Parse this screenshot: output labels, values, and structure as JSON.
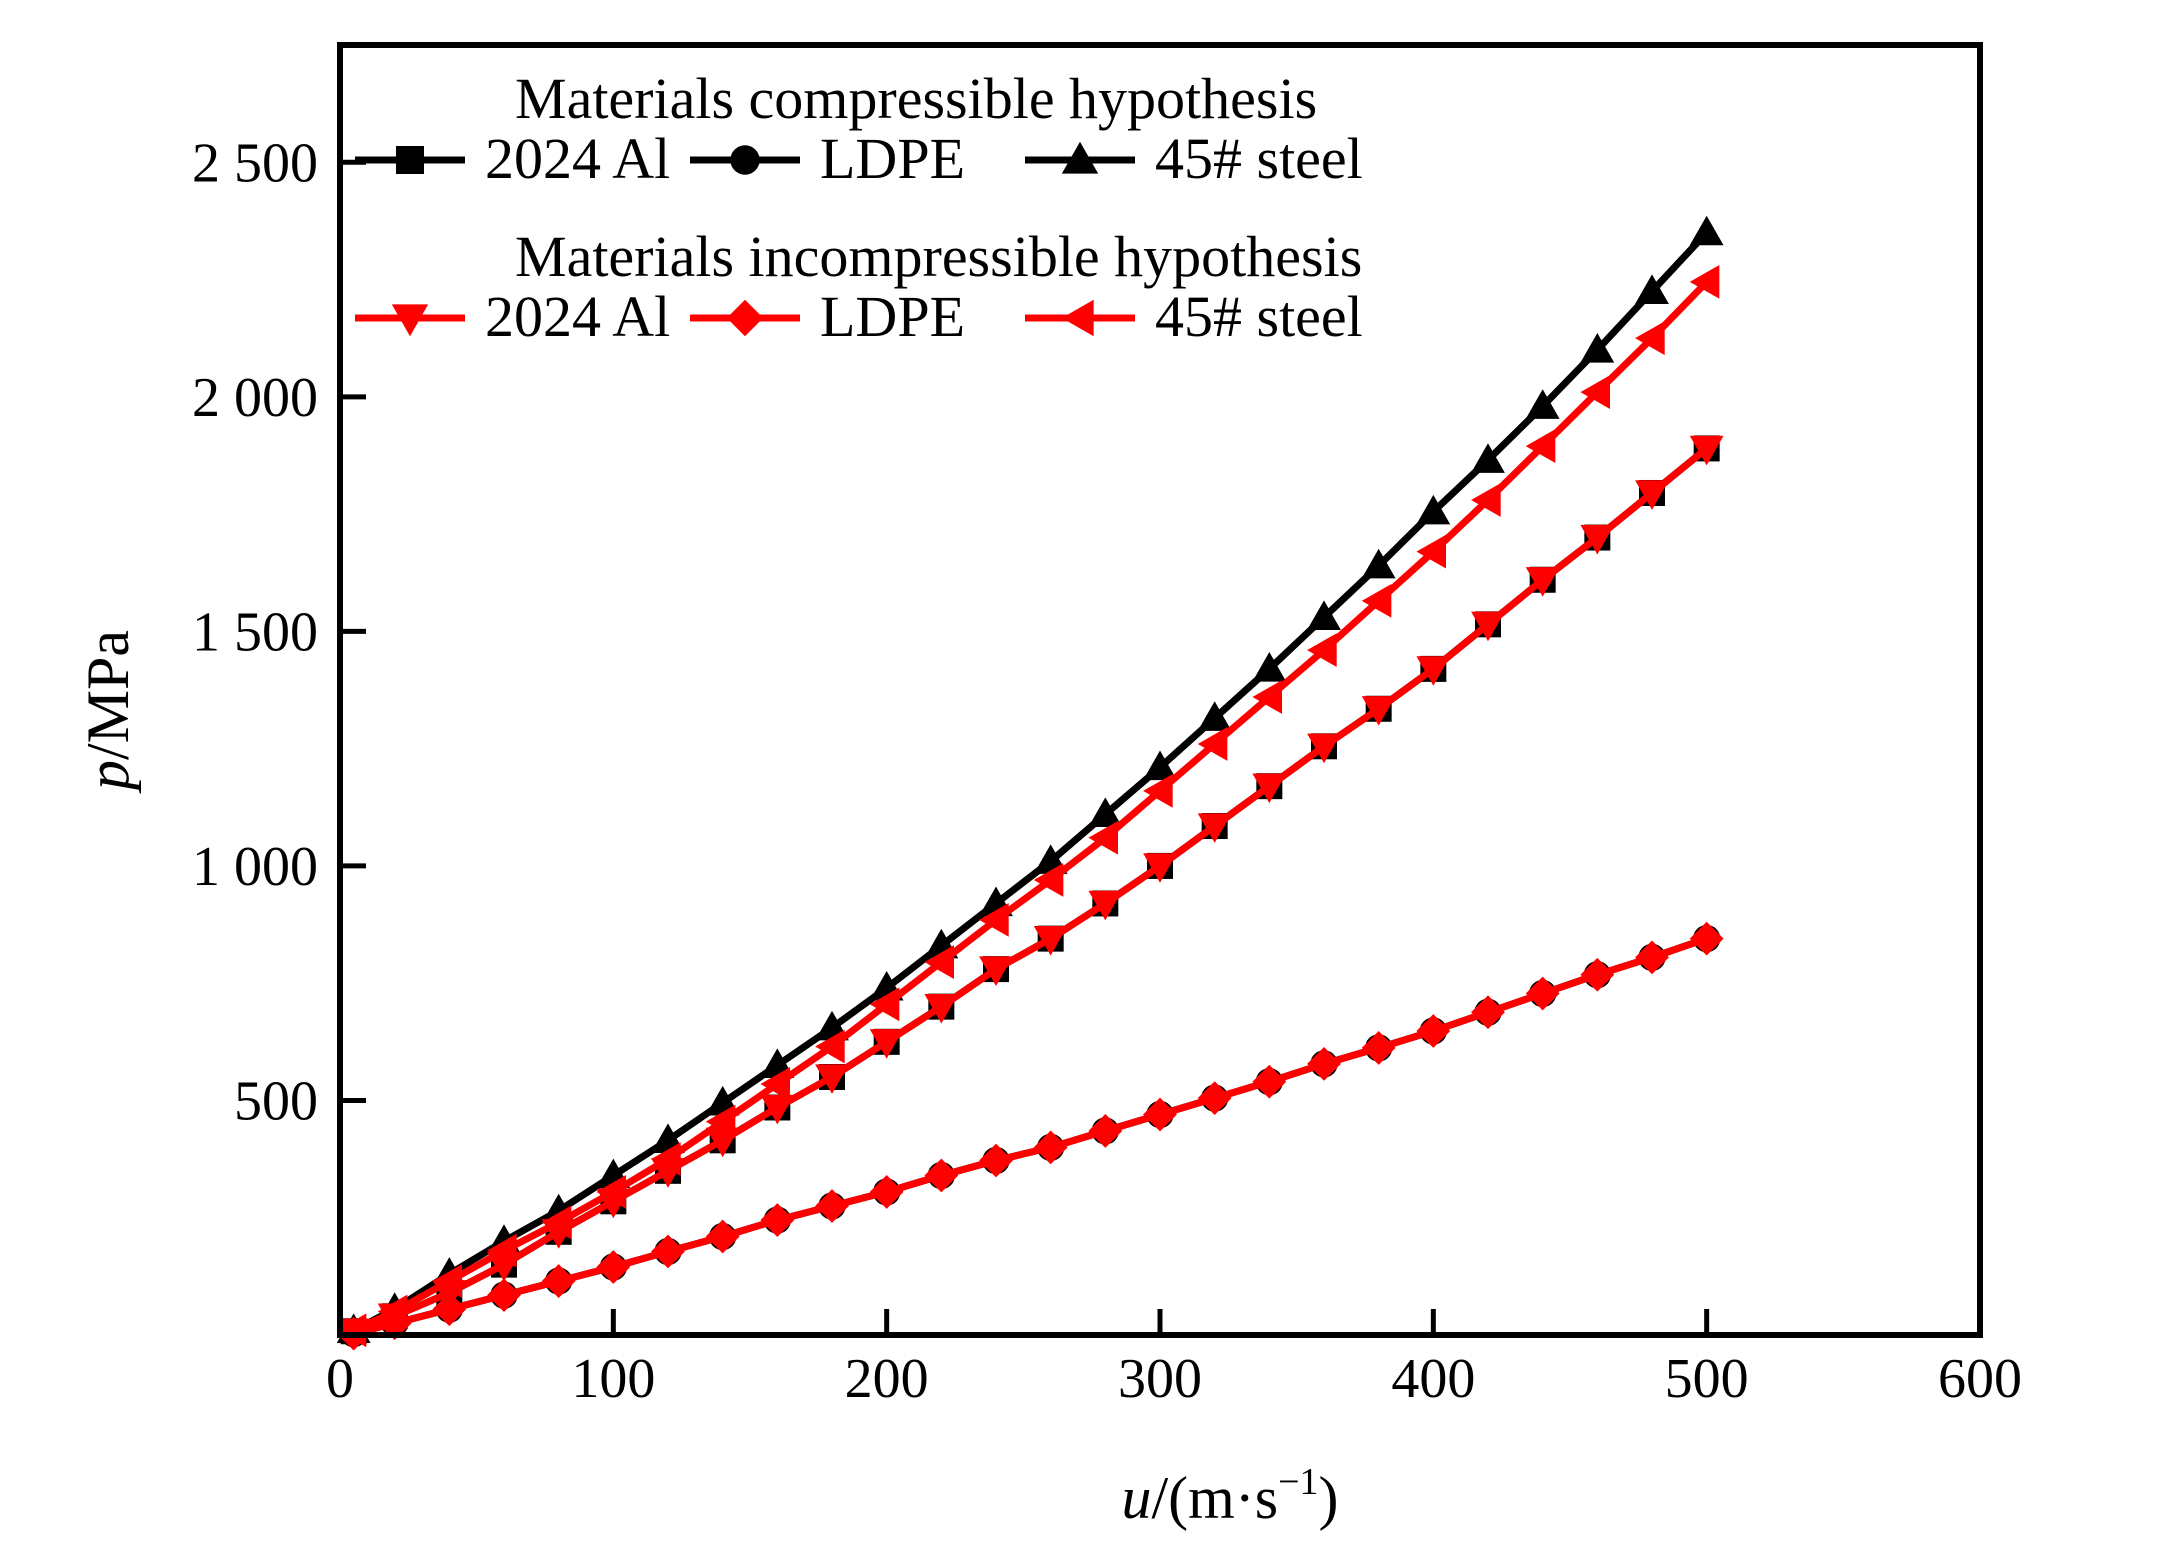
{
  "chart_data": {
    "type": "line",
    "xlabel": {
      "var": "u",
      "unit": "/(m·s",
      "sup": "−1",
      "close": ")"
    },
    "ylabel": {
      "var": "p",
      "unit": "/MPa"
    },
    "xlim": [
      0,
      600
    ],
    "ylim": [
      0,
      2750
    ],
    "xticks": [
      0,
      100,
      200,
      300,
      400,
      500,
      600
    ],
    "xtick_labels": [
      "0",
      "100",
      "200",
      "300",
      "400",
      "500",
      "600"
    ],
    "yticks": [
      500,
      1000,
      1500,
      2000,
      2500
    ],
    "ytick_labels": [
      "500",
      "1 000",
      "1 500",
      "2 000",
      "2 500"
    ],
    "grid": false,
    "legend_placement": "top-left",
    "legend_groups": [
      {
        "title": "Materials compressible hypothesis",
        "series": [
          0,
          1,
          2
        ]
      },
      {
        "title": "Materials incompressible hypothesis",
        "series": [
          3,
          4,
          5
        ]
      }
    ],
    "x": [
      5,
      20,
      40,
      60,
      80,
      100,
      120,
      140,
      160,
      180,
      200,
      220,
      240,
      260,
      280,
      300,
      320,
      340,
      360,
      380,
      400,
      420,
      440,
      460,
      480,
      500
    ],
    "series": [
      {
        "name": "2024 Al",
        "color": "#000000",
        "marker": "square",
        "values": [
          8,
          40,
          90,
          150,
          220,
          285,
          350,
          415,
          485,
          550,
          625,
          700,
          780,
          845,
          920,
          1000,
          1085,
          1170,
          1255,
          1335,
          1420,
          1515,
          1610,
          1700,
          1795,
          1890
        ]
      },
      {
        "name": "LDPE",
        "color": "#000000",
        "marker": "circle",
        "values": [
          3,
          25,
          55,
          85,
          115,
          145,
          178,
          210,
          245,
          275,
          305,
          340,
          372,
          400,
          435,
          470,
          505,
          540,
          578,
          612,
          648,
          688,
          728,
          768,
          805,
          845
        ]
      },
      {
        "name": "45# steel",
        "color": "#000000",
        "marker": "triangle-up",
        "values": [
          10,
          55,
          130,
          200,
          265,
          340,
          415,
          495,
          575,
          655,
          740,
          830,
          920,
          1010,
          1110,
          1210,
          1315,
          1420,
          1530,
          1640,
          1755,
          1865,
          1980,
          2100,
          2225,
          2350
        ]
      },
      {
        "name": "2024 Al",
        "color": "#ff0000",
        "marker": "triangle-down",
        "values": [
          8,
          40,
          90,
          150,
          220,
          285,
          350,
          415,
          485,
          550,
          625,
          700,
          780,
          845,
          920,
          1000,
          1085,
          1170,
          1255,
          1335,
          1420,
          1515,
          1610,
          1700,
          1795,
          1890
        ]
      },
      {
        "name": "LDPE",
        "color": "#ff0000",
        "marker": "diamond",
        "values": [
          3,
          25,
          55,
          85,
          115,
          145,
          178,
          210,
          245,
          275,
          305,
          340,
          372,
          400,
          435,
          470,
          505,
          540,
          578,
          612,
          648,
          688,
          728,
          768,
          805,
          845
        ]
      },
      {
        "name": "45# steel",
        "color": "#ff0000",
        "marker": "triangle-left",
        "values": [
          10,
          50,
          115,
          180,
          240,
          305,
          375,
          455,
          535,
          615,
          705,
          795,
          885,
          970,
          1060,
          1160,
          1260,
          1360,
          1460,
          1565,
          1670,
          1780,
          1895,
          2010,
          2125,
          2245
        ]
      }
    ]
  }
}
